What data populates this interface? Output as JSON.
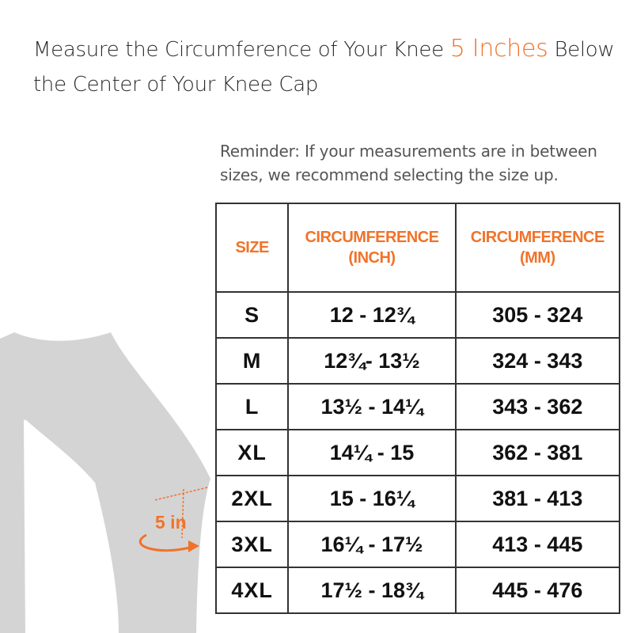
{
  "heading": {
    "part1": "Measure the Circumference of Your Knee",
    "accent": "5 Inches",
    "part2": "Below the Center of Your Knee Cap"
  },
  "reminder": {
    "line1": "Reminder: If your measurements are in between",
    "line2": "sizes, we recommend selecting the size up."
  },
  "diagram": {
    "measure_label": "5 in"
  },
  "colors": {
    "accent": "#f0732a",
    "leg": "#d4d4d4",
    "border": "#333333"
  },
  "table": {
    "headers": {
      "size": "SIZE",
      "inch_line1": "CIRCUMFERENCE",
      "inch_line2": "(INCH)",
      "mm_line1": "CIRCUMFERENCE",
      "mm_line2": "(MM)"
    },
    "rows": [
      {
        "size": "S",
        "inch": "12 - 12¾",
        "mm": "305 - 324"
      },
      {
        "size": "M",
        "inch": "12¾- 13½",
        "mm": "324 - 343"
      },
      {
        "size": "L",
        "inch": "13½ - 14¼",
        "mm": "343 - 362"
      },
      {
        "size": "XL",
        "inch": "14¼ - 15",
        "mm": "362 - 381"
      },
      {
        "size": "2XL",
        "inch": "15 - 16¼",
        "mm": "381 - 413"
      },
      {
        "size": "3XL",
        "inch": "16¼ - 17½",
        "mm": "413 - 445"
      },
      {
        "size": "4XL",
        "inch": "17½ - 18¾",
        "mm": "445 - 476"
      }
    ]
  }
}
